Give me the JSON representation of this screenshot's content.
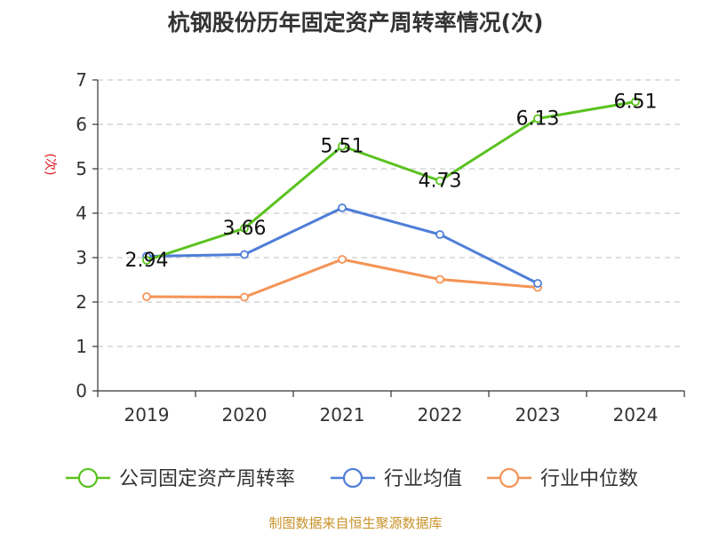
{
  "chart_data": {
    "type": "line",
    "title": "杭钢股份历年固定资产周转率情况(次)",
    "ylabel": "(次)",
    "xlabel": "",
    "ylim": [
      0,
      7
    ],
    "yticks": [
      "0",
      "1",
      "2",
      "3",
      "4",
      "5",
      "6",
      "7"
    ],
    "categories": [
      "2019",
      "2020",
      "2021",
      "2022",
      "2023",
      "2024"
    ],
    "grid": true,
    "legend_position": "bottom",
    "series": [
      {
        "name": "公司固定资产周转率",
        "color": "#5ac21f",
        "values": [
          2.94,
          3.66,
          5.51,
          4.73,
          6.13,
          6.51
        ],
        "labels": [
          "2.94",
          "3.66",
          "5.51",
          "4.73",
          "6.13",
          "6.51"
        ]
      },
      {
        "name": "行业均值",
        "color": "#4f7ed8",
        "values": [
          3.03,
          3.07,
          4.12,
          3.52,
          2.42,
          null
        ]
      },
      {
        "name": "行业中位数",
        "color": "#f49456",
        "values": [
          2.12,
          2.11,
          2.96,
          2.51,
          2.33,
          null
        ]
      }
    ]
  },
  "source": "制图数据来自恒生聚源数据库"
}
